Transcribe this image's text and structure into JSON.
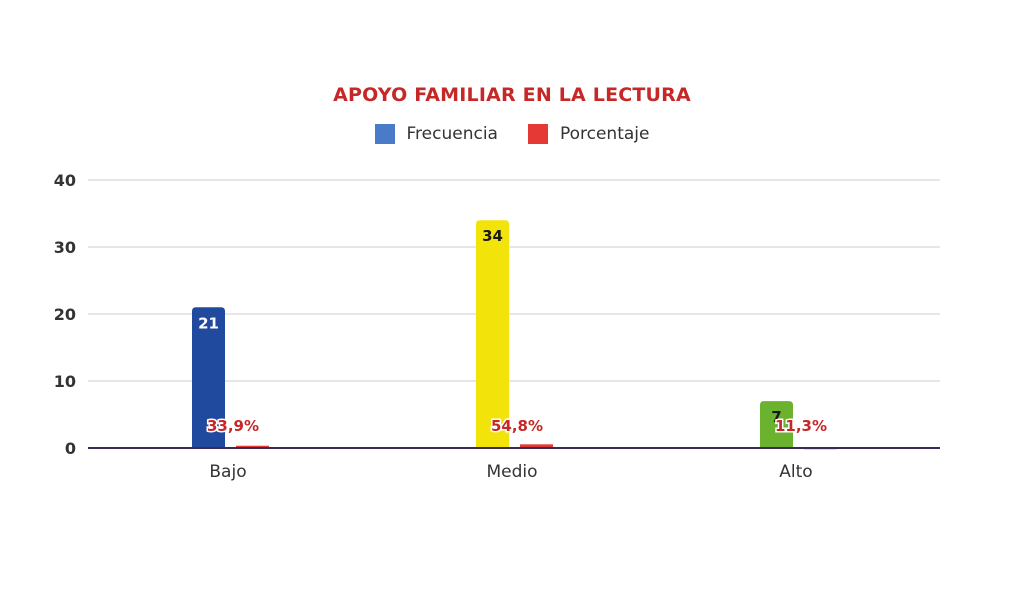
{
  "colors": {
    "title": "#c62828",
    "frecuencia_legend": "#4a7bc8",
    "porcentaje": "#e53935",
    "bar_bajo": "#1f4a9e",
    "bar_medio": "#f2e30a",
    "bar_alto": "#6bb32e",
    "grid": "#cccccc",
    "axis": "#3a2a5a"
  },
  "chart_data": {
    "type": "bar",
    "title": "APOYO FAMILIAR EN LA LECTURA",
    "xlabel": "",
    "ylabel": "",
    "categories": [
      "Bajo",
      "Medio",
      "Alto"
    ],
    "ylim": [
      0,
      40
    ],
    "yticks": [
      "0",
      "10",
      "20",
      "30",
      "40"
    ],
    "grid": true,
    "legend_position": "top-center",
    "series": [
      {
        "name": "Frecuencia",
        "values": [
          21,
          34,
          7
        ],
        "labels": [
          "21",
          "34",
          "7"
        ]
      },
      {
        "name": "Porcentaje",
        "values": [
          0.339,
          0.548,
          0.113
        ],
        "labels": [
          "33,9%",
          "54,8%",
          "11,3%"
        ]
      }
    ]
  }
}
